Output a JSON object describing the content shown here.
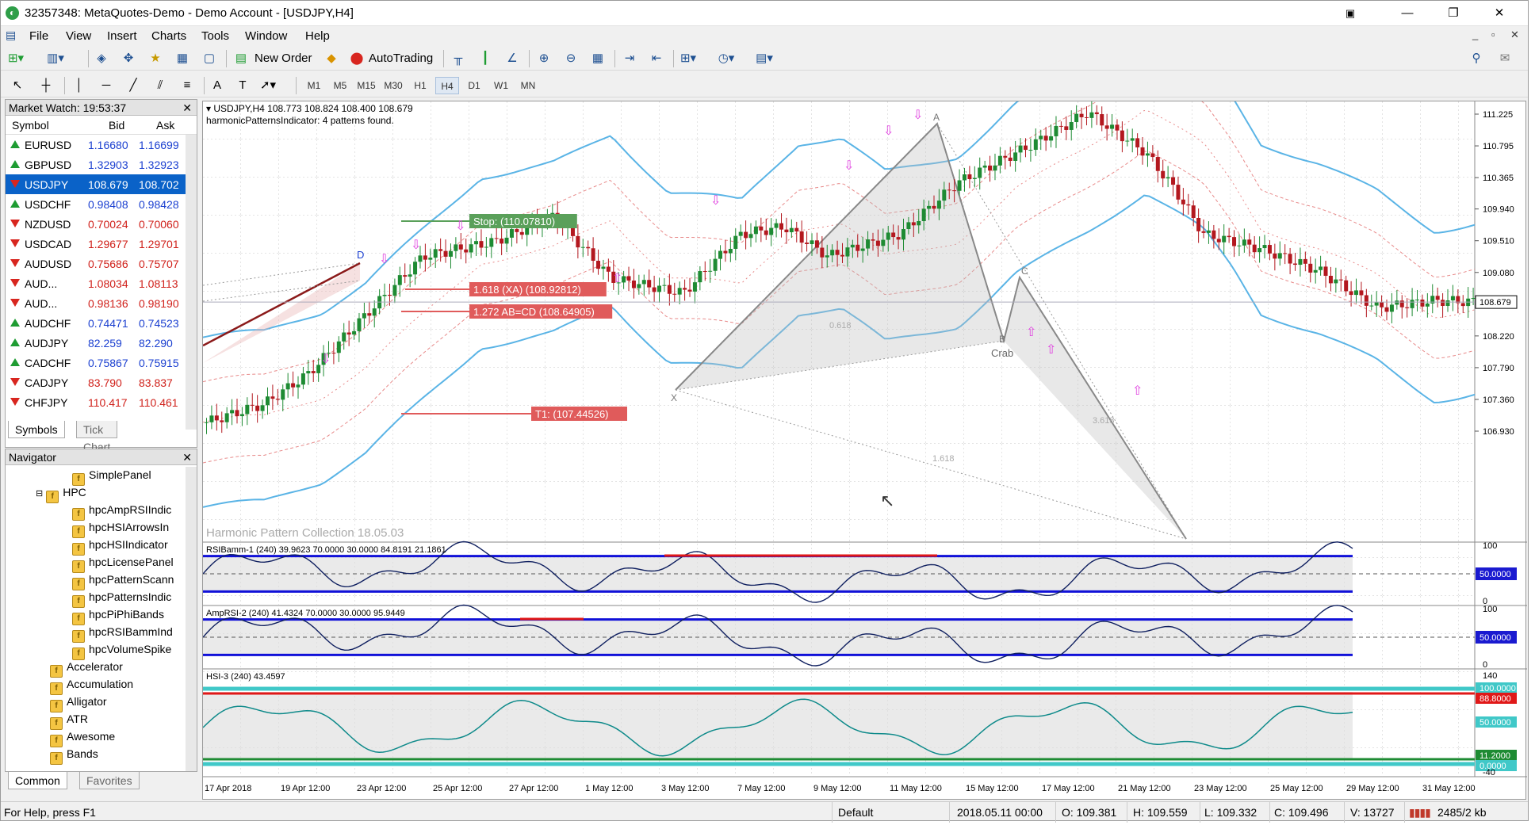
{
  "window": {
    "title": "32357348: MetaQuotes-Demo - Demo Account - [USDJPY,H4]"
  },
  "menu": [
    "File",
    "View",
    "Insert",
    "Charts",
    "Tools",
    "Window",
    "Help"
  ],
  "toolbar": {
    "new_order": "New Order",
    "autotrading": "AutoTrading"
  },
  "timeframes": [
    "M1",
    "M5",
    "M15",
    "M30",
    "H1",
    "H4",
    "D1",
    "W1",
    "MN"
  ],
  "active_timeframe": "H4",
  "market_watch": {
    "title": "Market Watch: 19:53:37",
    "headers": {
      "symbol": "Symbol",
      "bid": "Bid",
      "ask": "Ask"
    },
    "rows": [
      {
        "symbol": "EURUSD",
        "bid": "1.16680",
        "ask": "1.16699",
        "dir": "up",
        "color": "#1a3fd0"
      },
      {
        "symbol": "GBPUSD",
        "bid": "1.32903",
        "ask": "1.32923",
        "dir": "up",
        "color": "#1a3fd0"
      },
      {
        "symbol": "USDJPY",
        "bid": "108.679",
        "ask": "108.702",
        "dir": "dn",
        "color": "#ffffff",
        "selected": true
      },
      {
        "symbol": "USDCHF",
        "bid": "0.98408",
        "ask": "0.98428",
        "dir": "up",
        "color": "#1a3fd0"
      },
      {
        "symbol": "NZDUSD",
        "bid": "0.70024",
        "ask": "0.70060",
        "dir": "dn",
        "color": "#d0201a"
      },
      {
        "symbol": "USDCAD",
        "bid": "1.29677",
        "ask": "1.29701",
        "dir": "dn",
        "color": "#d0201a"
      },
      {
        "symbol": "AUDUSD",
        "bid": "0.75686",
        "ask": "0.75707",
        "dir": "dn",
        "color": "#d0201a"
      },
      {
        "symbol": "AUD...",
        "bid": "1.08034",
        "ask": "1.08113",
        "dir": "dn",
        "color": "#d0201a"
      },
      {
        "symbol": "AUD...",
        "bid": "0.98136",
        "ask": "0.98190",
        "dir": "dn",
        "color": "#d0201a"
      },
      {
        "symbol": "AUDCHF",
        "bid": "0.74471",
        "ask": "0.74523",
        "dir": "up",
        "color": "#1a3fd0"
      },
      {
        "symbol": "AUDJPY",
        "bid": "82.259",
        "ask": "82.290",
        "dir": "up",
        "color": "#1a3fd0"
      },
      {
        "symbol": "CADCHF",
        "bid": "0.75867",
        "ask": "0.75915",
        "dir": "up",
        "color": "#1a3fd0"
      },
      {
        "symbol": "CADJPY",
        "bid": "83.790",
        "ask": "83.837",
        "dir": "dn",
        "color": "#d0201a"
      },
      {
        "symbol": "CHFJPY",
        "bid": "110.417",
        "ask": "110.461",
        "dir": "dn",
        "color": "#d0201a"
      }
    ],
    "tabs": [
      "Symbols",
      "Tick Chart"
    ]
  },
  "navigator": {
    "title": "Navigator",
    "items": [
      {
        "label": "SimplePanel",
        "level": 2
      },
      {
        "label": "HPC",
        "level": 1,
        "folder": true
      },
      {
        "label": "hpcAmpRSIIndic",
        "level": 2
      },
      {
        "label": "hpcHSIArrowsIn",
        "level": 2
      },
      {
        "label": "hpcHSIIndicator",
        "level": 2
      },
      {
        "label": "hpcLicensePanel",
        "level": 2
      },
      {
        "label": "hpcPatternScann",
        "level": 2
      },
      {
        "label": "hpcPatternsIndic",
        "level": 2
      },
      {
        "label": "hpcPiPhiBands",
        "level": 2
      },
      {
        "label": "hpcRSIBammInd",
        "level": 2
      },
      {
        "label": "hpcVolumeSpike",
        "level": 2
      },
      {
        "label": "Accelerator",
        "level": 0
      },
      {
        "label": "Accumulation",
        "level": 0
      },
      {
        "label": "Alligator",
        "level": 0
      },
      {
        "label": "ATR",
        "level": 0
      },
      {
        "label": "Awesome",
        "level": 0
      },
      {
        "label": "Bands",
        "level": 0
      }
    ],
    "tabs": [
      "Common",
      "Favorites"
    ]
  },
  "chart": {
    "header": "USDJPY,H4  108.773 108.824 108.400 108.679",
    "indicator_note": "harmonicPatternsIndicator: 4 patterns found.",
    "watermark": "Harmonic Pattern Collection 18.05.03",
    "price_labels": [
      "111.225",
      "110.795",
      "110.365",
      "109.940",
      "109.510",
      "109.080",
      "108.650",
      "108.220",
      "107.790",
      "107.360",
      "106.930"
    ],
    "current_price": "108.679",
    "annotations": {
      "stop": "Stop: (110.07810)",
      "xa": "1.618 (XA) (108.92812)",
      "abcd": "1.272 AB=CD (108.64905)",
      "t1": "T1: (107.44526)",
      "crab": "Crab",
      "x": "X",
      "a": "A",
      "b": "B",
      "c": "C",
      "d": "D",
      "f618": "0.618",
      "f3618": "3.618",
      "f1618": "1.618"
    },
    "subwindows": [
      {
        "title": "RSIBamm-1 (240) 39.9623 70.0000 30.0000 84.8191 21.1861",
        "levels": [
          "100",
          "50.0000",
          "0"
        ]
      },
      {
        "title": "AmpRSI-2 (240) 41.4324 70.0000 30.0000 95.9449",
        "levels": [
          "100",
          "50.0000",
          "0"
        ]
      },
      {
        "title": "HSI-3 (240) 43.4597",
        "levels": [
          "140",
          "100.0000",
          "88.8000",
          "50.0000",
          "11.2000",
          "0.0000",
          "-40"
        ]
      }
    ],
    "time_labels": [
      "17 Apr 2018",
      "19 Apr 12:00",
      "23 Apr 12:00",
      "25 Apr 12:00",
      "27 Apr 12:00",
      "1 May 12:00",
      "3 May 12:00",
      "7 May 12:00",
      "9 May 12:00",
      "11 May 12:00",
      "15 May 12:00",
      "17 May 12:00",
      "21 May 12:00",
      "23 May 12:00",
      "25 May 12:00",
      "29 May 12:00",
      "31 May 12:00"
    ]
  },
  "status": {
    "help": "For Help, press F1",
    "profile": "Default",
    "time": "2018.05.11 00:00",
    "open": "O: 109.381",
    "high": "H: 109.559",
    "low": "L: 109.332",
    "close": "C: 109.496",
    "volume": "V: 13727",
    "traffic": "2485/2 kb"
  }
}
